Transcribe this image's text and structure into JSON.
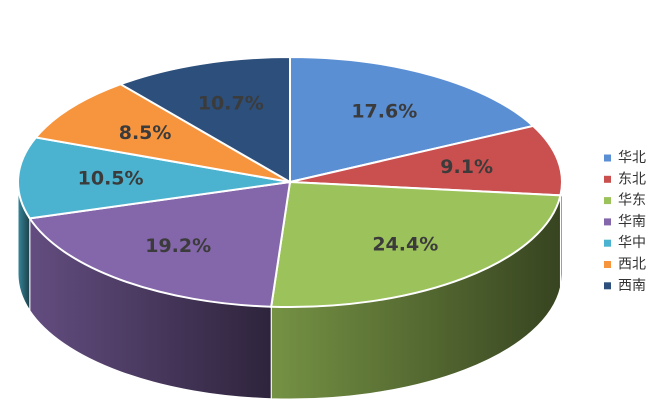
{
  "chart_data": {
    "type": "pie",
    "categories": [
      "华北",
      "东北",
      "华东",
      "华南",
      "华中",
      "西北",
      "西南"
    ],
    "values": [
      17.6,
      9.1,
      24.4,
      19.2,
      10.5,
      8.5,
      10.7
    ],
    "value_labels": [
      "17.6%",
      "9.1%",
      "24.4%",
      "19.2%",
      "10.5%",
      "8.5%",
      "10.7%"
    ],
    "colors": [
      "#5b8fd4",
      "#c9504f",
      "#9cc25b",
      "#8466ab",
      "#4bb3cf",
      "#f7953f",
      "#2d4f7c"
    ],
    "legend": "right"
  }
}
